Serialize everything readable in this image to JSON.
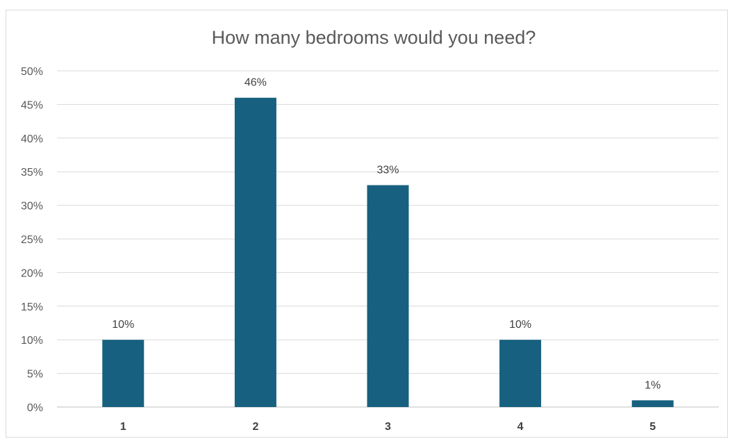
{
  "chart_data": {
    "type": "bar",
    "title": "How many bedrooms would you need?",
    "categories": [
      "1",
      "2",
      "3",
      "4",
      "5"
    ],
    "values": [
      10,
      46,
      33,
      10,
      1
    ],
    "data_labels": [
      "10%",
      "46%",
      "33%",
      "10%",
      "1%"
    ],
    "y_ticks": [
      "0%",
      "5%",
      "10%",
      "15%",
      "20%",
      "25%",
      "30%",
      "35%",
      "40%",
      "45%",
      "50%"
    ],
    "ylim": [
      0,
      50
    ],
    "xlabel": "",
    "ylabel": "",
    "grid": true,
    "legend": "none",
    "bar_color": "#17607f"
  }
}
